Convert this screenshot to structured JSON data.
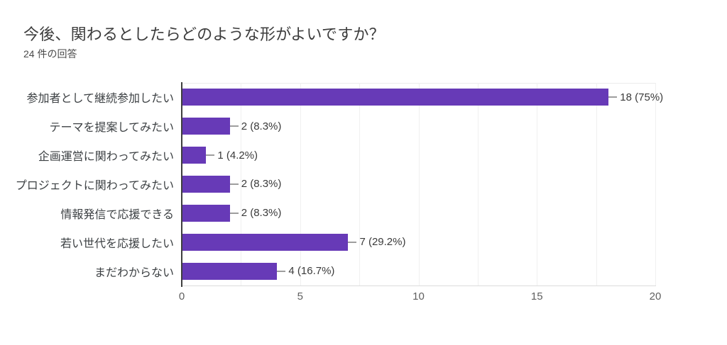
{
  "header": {
    "title": "今後、関わるとしたらどのような形がよいですか？",
    "response_count": "24 件の回答"
  },
  "colors": {
    "bar": "#673ab7",
    "axis_line": "#3e3e3e",
    "gridline": "#f0f0f0",
    "baseline": "#dcdcdc",
    "callout": "#9e9e9e",
    "title_text": "#3c3c3c",
    "category_text": "#3c4043",
    "value_text": "#3a3a3a",
    "tick_text": "#5f5f5f"
  },
  "chart_data": {
    "type": "bar",
    "orientation": "horizontal",
    "title": "今後、関わるとしたらどのような形がよいですか？",
    "subtitle": "24 件の回答",
    "total_responses": 24,
    "categories": [
      "参加者として継続参加したい",
      "テーマを提案してみたい",
      "企画運営に関わってみたい",
      "プロジェクトに関わってみたい",
      "情報発信で応援できる",
      "若い世代を応援したい",
      "まだわからない"
    ],
    "values": [
      18,
      2,
      1,
      2,
      2,
      7,
      4
    ],
    "value_labels": [
      "18 (75%)",
      "2 (8.3%)",
      "1 (4.2%)",
      "2 (8.3%)",
      "2 (8.3%)",
      "7 (29.2%)",
      "4 (16.7%)"
    ],
    "xlabel": "",
    "ylabel": "",
    "xlim": [
      0,
      20
    ],
    "x_ticks": [
      "0",
      "5",
      "10",
      "15",
      "20"
    ],
    "gridline_step": 2.5,
    "grid": true,
    "legend": "none"
  }
}
